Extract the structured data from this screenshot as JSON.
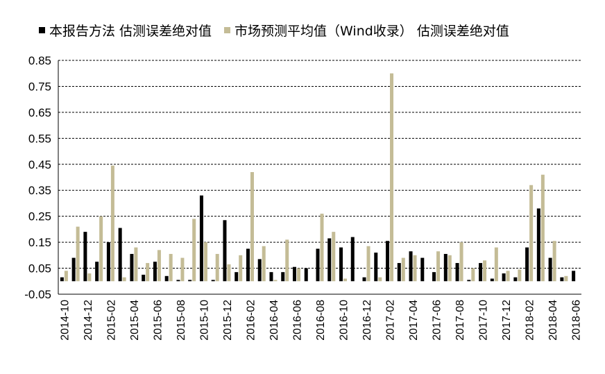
{
  "colors": {
    "series1": "#000000",
    "series2": "#c4bc96",
    "grid": "#000000"
  },
  "chart_data": {
    "type": "bar",
    "title": "",
    "xlabel": "",
    "ylabel": "",
    "ylim": [
      -0.05,
      0.85
    ],
    "yticks": [
      "0.85",
      "0.75",
      "0.65",
      "0.55",
      "0.45",
      "0.35",
      "0.25",
      "0.15",
      "0.05",
      "-0.05"
    ],
    "ytick_values": [
      0.85,
      0.75,
      0.65,
      0.55,
      0.45,
      0.35,
      0.25,
      0.15,
      0.05,
      -0.05
    ],
    "grid": "horizontal dashed",
    "legend_position": "top",
    "categories": [
      "2014-10",
      "2014-11",
      "2014-12",
      "2015-01",
      "2015-02",
      "2015-03",
      "2015-04",
      "2015-05",
      "2015-06",
      "2015-07",
      "2015-08",
      "2015-09",
      "2015-10",
      "2015-11",
      "2015-12",
      "2016-01",
      "2016-02",
      "2016-03",
      "2016-04",
      "2016-05",
      "2016-06",
      "2016-07",
      "2016-08",
      "2016-09",
      "2016-10",
      "2016-11",
      "2016-12",
      "2017-01",
      "2017-02",
      "2017-03",
      "2017-04",
      "2017-05",
      "2017-06",
      "2017-07",
      "2017-08",
      "2017-09",
      "2017-10",
      "2017-11",
      "2017-12",
      "2018-01",
      "2018-02",
      "2018-03",
      "2018-04",
      "2018-05",
      "2018-06"
    ],
    "xtick_labels": [
      "2014-10",
      "2014-12",
      "2015-02",
      "2015-04",
      "2015-06",
      "2015-08",
      "2015-10",
      "2015-12",
      "2016-02",
      "2016-04",
      "2016-06",
      "2016-08",
      "2016-10",
      "2016-12",
      "2017-02",
      "2017-04",
      "2017-06",
      "2017-08",
      "2017-10",
      "2017-12",
      "2018-02",
      "2018-04",
      "2018-06"
    ],
    "series": [
      {
        "name": "本报告方法 估测误差绝对值",
        "values": [
          0.015,
          0.09,
          0.19,
          0.075,
          0.15,
          0.205,
          0.105,
          0.025,
          0.075,
          0.02,
          0.005,
          0.005,
          0.33,
          0.005,
          0.235,
          0.035,
          0.125,
          0.085,
          0.035,
          0.035,
          0.055,
          0.05,
          0.125,
          0.165,
          0.13,
          0.17,
          0.015,
          0.11,
          0.155,
          0.07,
          0.115,
          0.09,
          0.035,
          0.105,
          0.07,
          0.005,
          0.07,
          0.01,
          0.03,
          0.015,
          0.13,
          0.28,
          0.09,
          0.015,
          0.04
        ]
      },
      {
        "name": "市场预测平均值（Wind收录） 估测误差绝对值",
        "values": [
          0.04,
          0.21,
          0.03,
          0.25,
          0.445,
          0.015,
          0.13,
          0.07,
          0.12,
          0.105,
          0.09,
          0.24,
          0.15,
          0.105,
          0.065,
          0.1,
          0.42,
          0.135,
          0.005,
          0.16,
          0.05,
          0.0,
          0.26,
          0.19,
          0.01,
          0.0,
          0.135,
          0.015,
          0.8,
          0.09,
          0.1,
          0.0,
          0.115,
          0.1,
          0.15,
          0.05,
          0.08,
          0.13,
          0.04,
          0.045,
          0.37,
          0.41,
          0.155,
          0.02,
          0.0
        ]
      }
    ]
  }
}
